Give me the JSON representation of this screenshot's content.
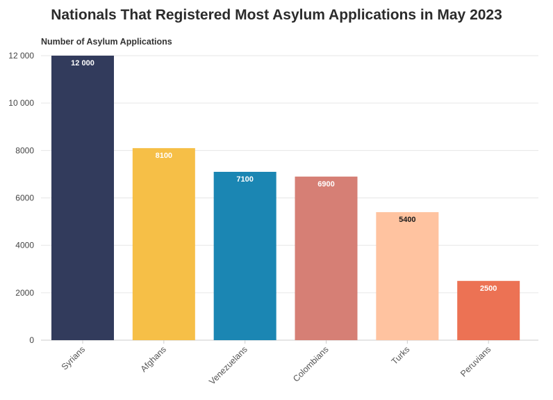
{
  "chart_data": {
    "type": "bar",
    "title": "Nationals That Registered Most Asylum Applications in May 2023",
    "ylabel": "Number of Asylum Applications",
    "xlabel": "",
    "categories": [
      "Syrians",
      "Afghans",
      "Venezuelans",
      "Colombians",
      "Turks",
      "Peruvians"
    ],
    "values": [
      12000,
      8100,
      7100,
      6900,
      5400,
      2500
    ],
    "value_labels": [
      "12 000",
      "8100",
      "7100",
      "6900",
      "5400",
      "2500"
    ],
    "colors": [
      "#323b5c",
      "#f6bf47",
      "#1b86b3",
      "#d67f75",
      "#ffc3a0",
      "#ec7254"
    ],
    "label_colors": [
      "#ffffff",
      "#ffffff",
      "#ffffff",
      "#ffffff",
      "#1a1a1a",
      "#ffffff"
    ],
    "ylim": [
      0,
      12000
    ],
    "yticks": [
      0,
      2000,
      4000,
      6000,
      8000,
      10000,
      12000
    ],
    "ytick_labels": [
      "0",
      "2000",
      "4000",
      "6000",
      "8000",
      "10 000",
      "12 000"
    ],
    "grid": true,
    "legend": "none"
  }
}
